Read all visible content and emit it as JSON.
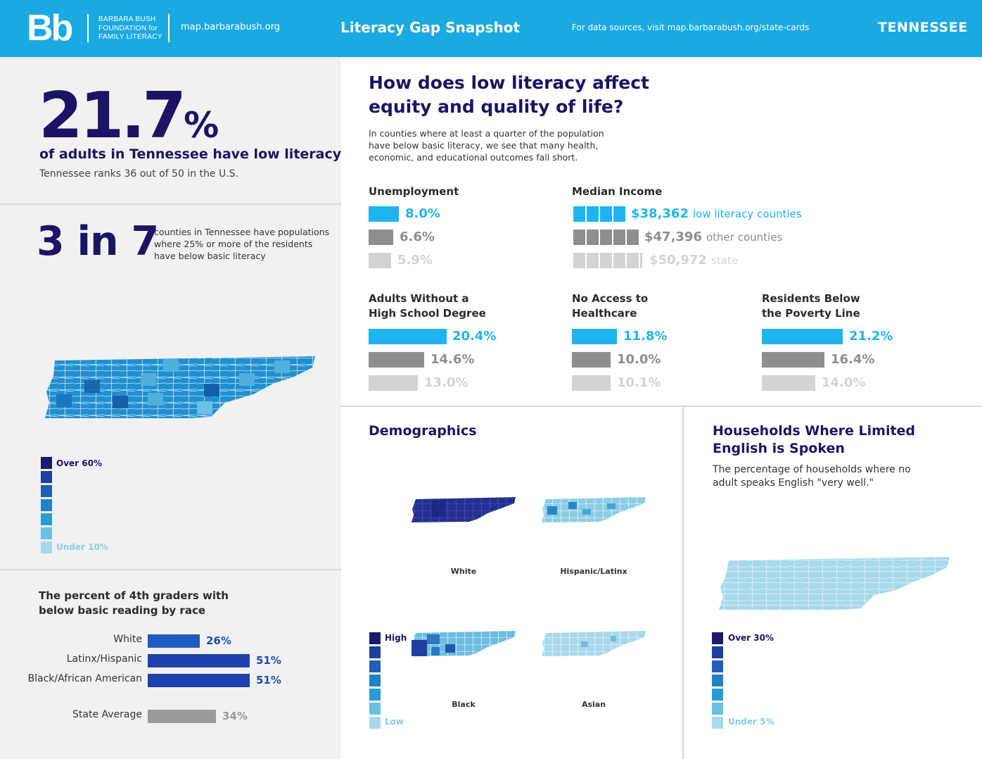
{
  "header": {
    "logo_mark": "Bb",
    "logo_line1": "BARBARA BUSH",
    "logo_line2": "FOUNDATION for",
    "logo_line3": "FAMILY LITERACY",
    "url": "map.barbarabush.org",
    "title": "Literacy Gap Snapshot",
    "sources": "For data sources, visit map.barbarabush.org/state-cards",
    "state": "TENNESSEE"
  },
  "left": {
    "big_number": "21.7",
    "big_number_suffix": "%",
    "big_caption": "of adults in Tennessee have low literacy",
    "rank_text": "Tennessee ranks 36 out of 50 in the U.S.",
    "counties_ratio": "3 in 7",
    "counties_text": "counties in Tennessee have populations where 25% or more of the residents have below basic literacy",
    "legend_high": "Over 60%",
    "legend_low": "Under 10%",
    "race_title_line1": "The percent of 4th graders with",
    "race_title_line2": "below basic reading by race",
    "race_rows": [
      {
        "label": "White",
        "value": "26%"
      },
      {
        "label": "Latinx/Hispanic",
        "value": "51%"
      },
      {
        "label": "Black/African American",
        "value": "51%"
      },
      {
        "label": "State Average",
        "value": "34%"
      }
    ]
  },
  "right": {
    "title_line1": "How does low literacy affect",
    "title_line2": "equity and quality of life?",
    "description": "In counties where at least a quarter of the population have below basic literacy, we see that many health, economic, and educational outcomes fall short.",
    "unemployment": {
      "heading": "Unemployment",
      "values": [
        "8.0%",
        "6.6%",
        "5.9%"
      ]
    },
    "median_income": {
      "heading": "Median Income",
      "values": [
        "$38,362",
        "$47,396",
        "$50,972"
      ],
      "labels": [
        "low literacy counties",
        "other counties",
        "state"
      ]
    },
    "hs_degree": {
      "heading_line1": "Adults Without a",
      "heading_line2": "High School Degree",
      "values": [
        "20.4%",
        "14.6%",
        "13.0%"
      ]
    },
    "healthcare": {
      "heading_line1": "No Access to",
      "heading_line2": "Healthcare",
      "values": [
        "11.8%",
        "10.0%",
        "10.1%"
      ]
    },
    "poverty": {
      "heading_line1": "Residents Below",
      "heading_line2": "the Poverty Line",
      "values": [
        "21.2%",
        "16.4%",
        "14.0%"
      ]
    }
  },
  "demographics": {
    "title": "Demographics",
    "maps": [
      "White",
      "Hispanic/Latinx",
      "Black",
      "Asian"
    ],
    "legend_high": "High",
    "legend_low": "Low"
  },
  "lep": {
    "title_line1": "Households Where Limited",
    "title_line2": "English is Spoken",
    "description": "The percentage of households where no adult speaks English \"very well.\"",
    "legend_high": "Over 30%",
    "legend_low": "Under 5%"
  },
  "colors": {
    "header": "#1aa9e0",
    "low_literacy": "#1fb4f0",
    "other_counties": "#8e8e90",
    "state": "#d3d3d3",
    "navy": "#1b1464",
    "race_bar": "#1e49b4"
  }
}
